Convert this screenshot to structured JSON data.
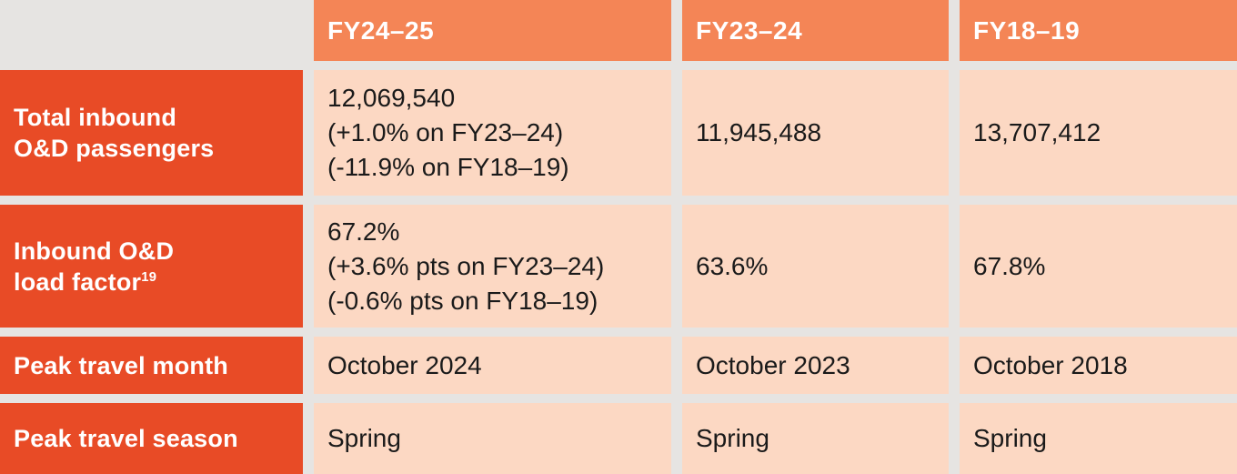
{
  "theme": {
    "background": "#e6e4e2",
    "header_bg": "#f48556",
    "header_text": "#ffffff",
    "label_bg": "#e84b26",
    "label_text": "#ffffff",
    "cell_bg": "#fcd8c3",
    "cell_text": "#1a1a1a"
  },
  "table": {
    "columns": [
      {
        "label": "FY24–25"
      },
      {
        "label": "FY23–24"
      },
      {
        "label": "FY18–19"
      }
    ],
    "rows": [
      {
        "label_lines": [
          "Total inbound",
          "O&D passengers"
        ],
        "cells": [
          {
            "lines": [
              "12,069,540",
              "(+1.0% on FY23–24)",
              "(-11.9% on FY18–19)"
            ]
          },
          {
            "lines": [
              "11,945,488"
            ]
          },
          {
            "lines": [
              "13,707,412"
            ]
          }
        ]
      },
      {
        "label_lines": [
          "Inbound O&D",
          "load factor"
        ],
        "label_sup": "19",
        "cells": [
          {
            "lines": [
              "67.2%",
              "(+3.6% pts on FY23–24)",
              "(-0.6% pts on FY18–19)"
            ]
          },
          {
            "lines": [
              "63.6%"
            ]
          },
          {
            "lines": [
              "67.8%"
            ]
          }
        ]
      },
      {
        "label_lines": [
          "Peak travel month"
        ],
        "cells": [
          {
            "lines": [
              "October 2024"
            ]
          },
          {
            "lines": [
              "October 2023"
            ]
          },
          {
            "lines": [
              "October 2018"
            ]
          }
        ]
      },
      {
        "label_lines": [
          "Peak travel season"
        ],
        "cells": [
          {
            "lines": [
              "Spring"
            ]
          },
          {
            "lines": [
              "Spring"
            ]
          },
          {
            "lines": [
              "Spring"
            ]
          }
        ]
      }
    ]
  }
}
